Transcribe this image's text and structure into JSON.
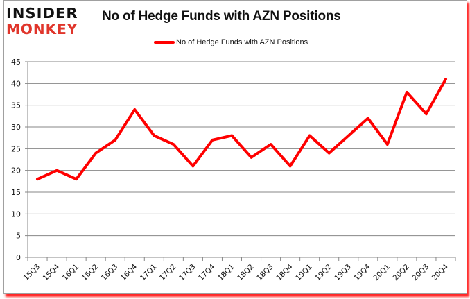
{
  "header": {
    "logo_line1": "INSIDER",
    "logo_line2": "MONKEY",
    "title": "No of Hedge Funds with AZN Positions"
  },
  "legend": {
    "label": "No of Hedge Funds with AZN Positions",
    "color": "#ff0000"
  },
  "colors": {
    "line": "#ff0000",
    "grid": "#878787",
    "logo_dark": "#111111",
    "logo_red": "#e0352b",
    "shadow": "#ff0000"
  },
  "chart_data": {
    "type": "line",
    "title": "No of Hedge Funds with AZN Positions",
    "xlabel": "",
    "ylabel": "",
    "ylim": [
      0,
      45
    ],
    "yticks": [
      0,
      5,
      10,
      15,
      20,
      25,
      30,
      35,
      40,
      45
    ],
    "grid": true,
    "legend_position": "top",
    "categories": [
      "15Q3",
      "15Q4",
      "16Q1",
      "16Q2",
      "16Q3",
      "16Q4",
      "17Q1",
      "17Q2",
      "17Q3",
      "17Q4",
      "18Q1",
      "18Q2",
      "18Q3",
      "18Q4",
      "19Q1",
      "19Q2",
      "19Q3",
      "19Q4",
      "20Q1",
      "20Q2",
      "20Q3",
      "20Q4"
    ],
    "series": [
      {
        "name": "No of Hedge Funds with AZN Positions",
        "color": "#ff0000",
        "values": [
          18,
          20,
          18,
          24,
          27,
          34,
          28,
          26,
          21,
          27,
          28,
          23,
          26,
          21,
          28,
          24,
          28,
          32,
          26,
          38,
          33,
          41
        ]
      }
    ]
  }
}
